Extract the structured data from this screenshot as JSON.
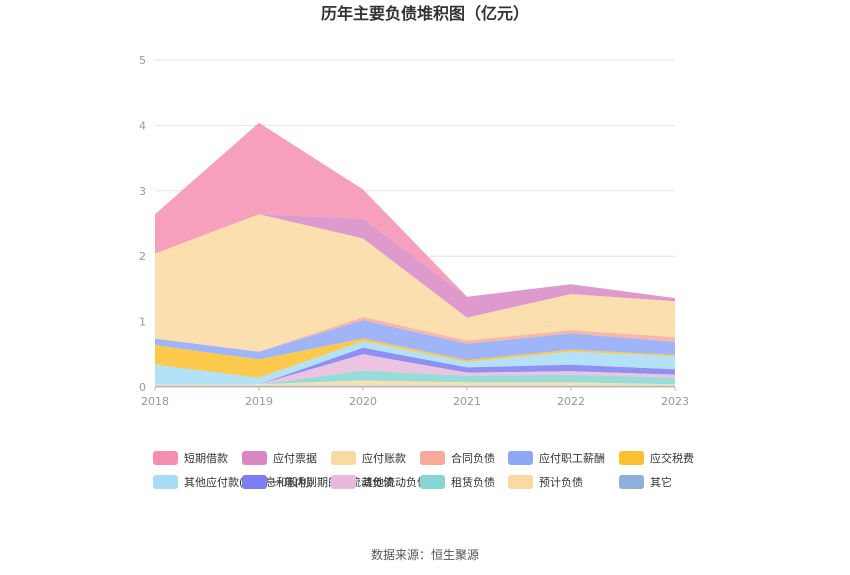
{
  "chart_data": {
    "type": "area",
    "stacked": true,
    "title": "历年主要负债堆积图（亿元）",
    "x": [
      "2018",
      "2019",
      "2020",
      "2021",
      "2022",
      "2023"
    ],
    "ylim": [
      0,
      5
    ],
    "yticks": [
      "0",
      "1",
      "2",
      "3",
      "4",
      "5"
    ],
    "grid": true,
    "legend_position": "bottom",
    "series": [
      {
        "name": "短期借款",
        "color": "#f48fb1",
        "values": [
          0.6,
          1.4,
          0.45,
          0,
          0,
          0
        ]
      },
      {
        "name": "应付票据",
        "color": "#d988c4",
        "values": [
          0,
          0,
          0.3,
          0.32,
          0.15,
          0.05
        ]
      },
      {
        "name": "应付账款",
        "color": "#fcd9a0",
        "values": [
          1.3,
          2.1,
          1.2,
          0.35,
          0.55,
          0.55
        ]
      },
      {
        "name": "合同负债",
        "color": "#f8a99b",
        "values": [
          0,
          0,
          0.05,
          0.05,
          0.05,
          0.07
        ]
      },
      {
        "name": "应付职工薪酬",
        "color": "#8fa8f6",
        "values": [
          0.1,
          0.12,
          0.28,
          0.25,
          0.25,
          0.2
        ]
      },
      {
        "name": "应交税费",
        "color": "#fbc02d",
        "values": [
          0.3,
          0.28,
          0.04,
          0.03,
          0.03,
          0.02
        ]
      },
      {
        "name": "其他应付款(含利息和股利)",
        "color": "#a6dcf7",
        "values": [
          0.3,
          0.1,
          0.1,
          0.08,
          0.2,
          0.2
        ]
      },
      {
        "name": "一年内到期的非流动负债",
        "color": "#7b7ef0",
        "values": [
          0,
          0,
          0.1,
          0.08,
          0.1,
          0.08
        ]
      },
      {
        "name": "其他流动负债",
        "color": "#e9b8dc",
        "values": [
          0,
          0,
          0.25,
          0.05,
          0.05,
          0.05
        ]
      },
      {
        "name": "租赁负债",
        "color": "#86d6d4",
        "values": [
          0,
          0,
          0.15,
          0.1,
          0.12,
          0.1
        ]
      },
      {
        "name": "预计负债",
        "color": "#fcd9a0",
        "values": [
          0.02,
          0.02,
          0.08,
          0.05,
          0.05,
          0.02
        ]
      },
      {
        "name": "其它",
        "color": "#8eaedc",
        "values": [
          0.02,
          0.02,
          0.02,
          0.02,
          0.02,
          0.02
        ]
      }
    ]
  },
  "footer": {
    "source": "数据来源：恒生聚源"
  }
}
